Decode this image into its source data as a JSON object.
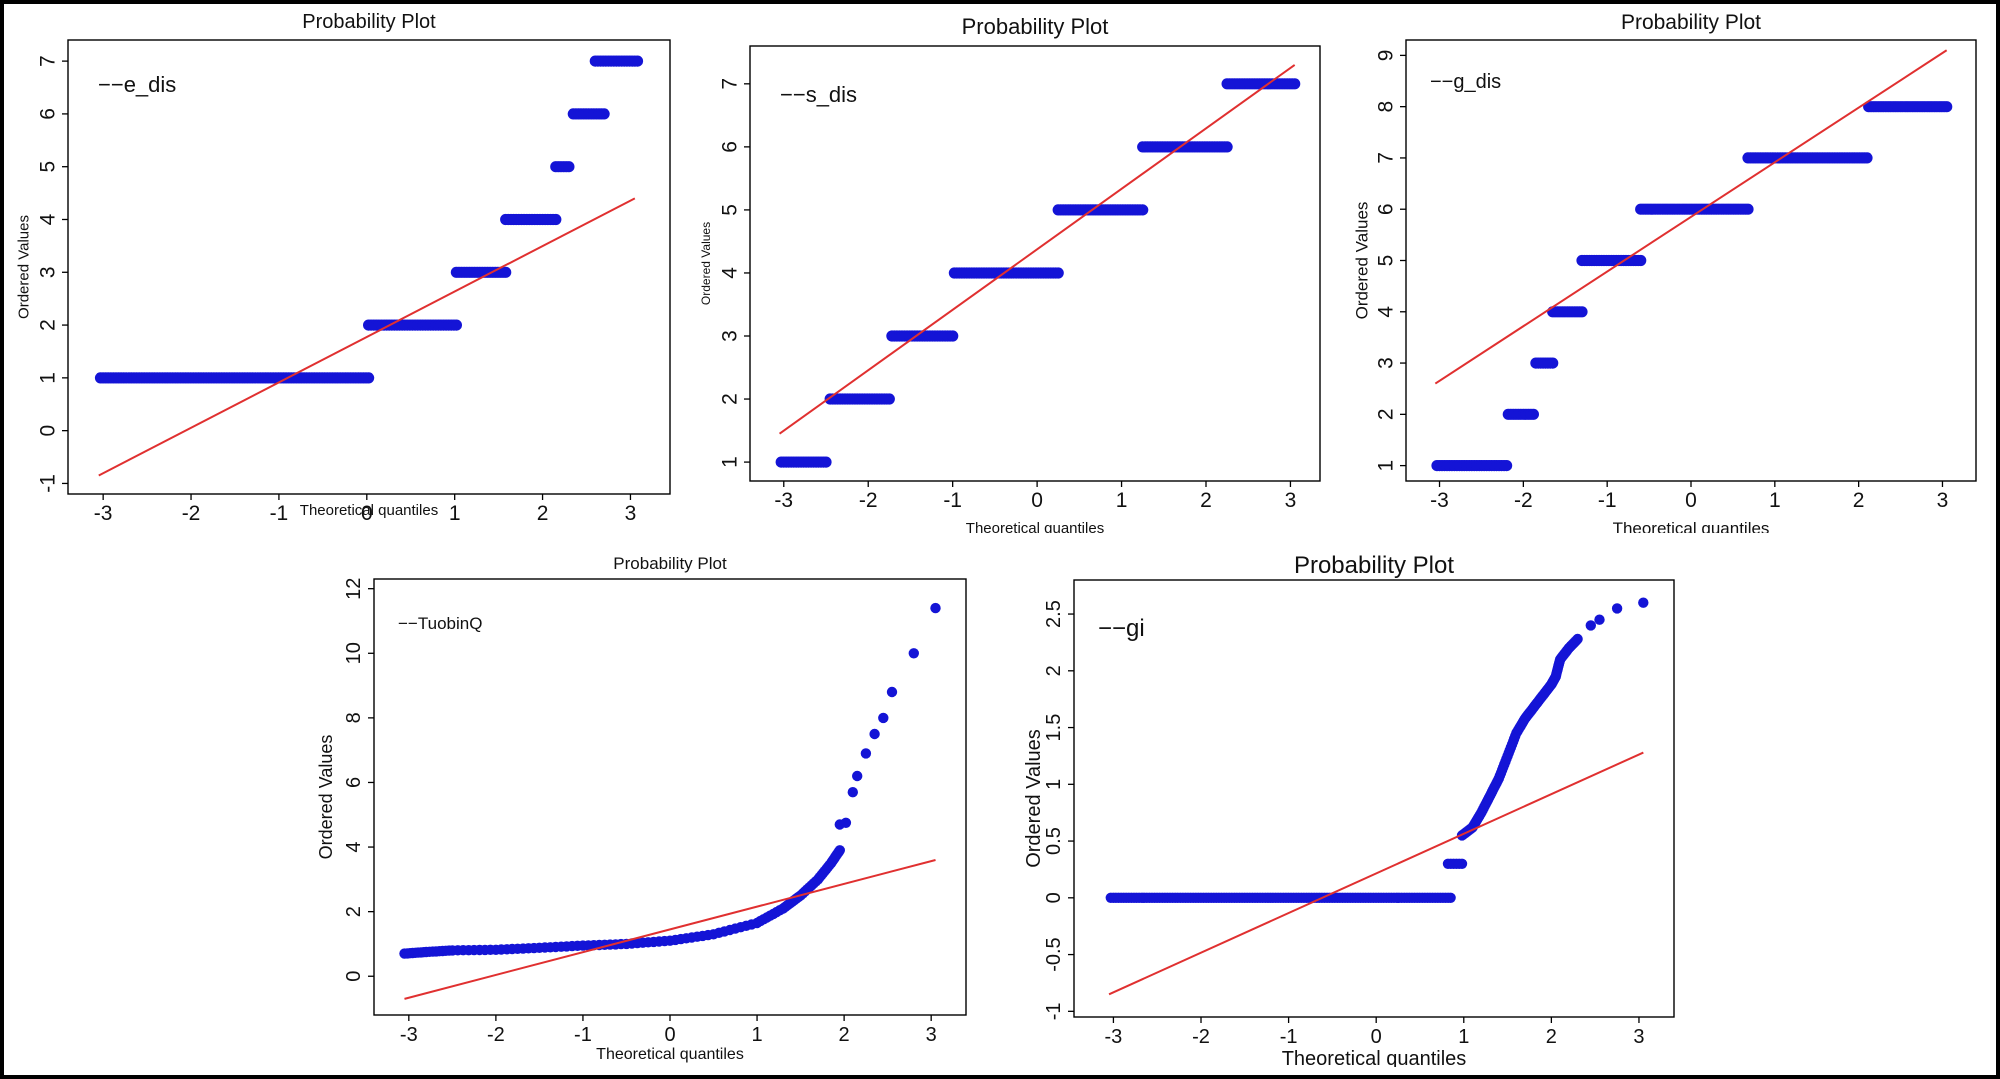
{
  "colors": {
    "points": "#1414d6",
    "fit": "#e03030",
    "frame": "#000000",
    "background": "#ffffff"
  },
  "chart_data": [
    {
      "id": "e_dis",
      "type": "scatter",
      "title": "Probability Plot",
      "legend": "−−e_dis",
      "xlabel": "Theoretical quantiles",
      "ylabel": "Ordered Values",
      "xlim": [
        -3.4,
        3.45
      ],
      "ylim": [
        -1.2,
        7.4
      ],
      "xticks": [
        -3,
        -2,
        -1,
        0,
        1,
        2,
        3
      ],
      "yticks": [
        -1,
        0,
        1,
        2,
        3,
        4,
        5,
        6,
        7
      ],
      "ytick_labels": [
        "-1",
        "0",
        "1",
        "2",
        "3",
        "4",
        "5",
        "6",
        "7"
      ],
      "fit_line": {
        "x": [
          -3.05,
          3.05
        ],
        "y": [
          -0.85,
          4.4
        ]
      },
      "segments": [
        {
          "y": 1,
          "x_start": -3.03,
          "x_end": 0.02
        },
        {
          "y": 2,
          "x_start": 0.02,
          "x_end": 1.02
        },
        {
          "y": 3,
          "x_start": 1.02,
          "x_end": 1.58
        },
        {
          "y": 4,
          "x_start": 1.58,
          "x_end": 2.15
        },
        {
          "y": 5,
          "x_start": 2.15,
          "x_end": 2.3
        },
        {
          "y": 6,
          "x_start": 2.35,
          "x_end": 2.7
        },
        {
          "y": 7,
          "x_start": 2.6,
          "x_end": 3.08
        }
      ]
    },
    {
      "id": "s_dis",
      "type": "scatter",
      "title": "Probability Plot",
      "legend": "−−s_dis",
      "xlabel": "Theoretical quantiles",
      "ylabel": "Ordered Values",
      "xlim": [
        -3.4,
        3.35
      ],
      "ylim": [
        0.7,
        7.6
      ],
      "xticks": [
        -3,
        -2,
        -1,
        0,
        1,
        2,
        3
      ],
      "yticks": [
        1,
        2,
        3,
        4,
        5,
        6,
        7
      ],
      "ytick_labels": [
        "1",
        "2",
        "3",
        "4",
        "5",
        "6",
        "7"
      ],
      "fit_line": {
        "x": [
          -3.05,
          3.05
        ],
        "y": [
          1.45,
          7.3
        ]
      },
      "segments": [
        {
          "y": 1,
          "x_start": -3.03,
          "x_end": -2.5
        },
        {
          "y": 2,
          "x_start": -2.45,
          "x_end": -1.75
        },
        {
          "y": 3,
          "x_start": -1.72,
          "x_end": -1.0
        },
        {
          "y": 4,
          "x_start": -0.98,
          "x_end": 0.25
        },
        {
          "y": 5,
          "x_start": 0.25,
          "x_end": 1.25
        },
        {
          "y": 6,
          "x_start": 1.25,
          "x_end": 2.25
        },
        {
          "y": 7,
          "x_start": 2.25,
          "x_end": 3.05
        }
      ]
    },
    {
      "id": "g_dis",
      "type": "scatter",
      "title": "Probability Plot",
      "legend": "−−g_dis",
      "xlabel": "Theoretical quantiles",
      "ylabel": "Ordered Values",
      "xlim": [
        -3.4,
        3.4
      ],
      "ylim": [
        0.7,
        9.3
      ],
      "xticks": [
        -3,
        -2,
        -1,
        0,
        1,
        2,
        3
      ],
      "yticks": [
        1,
        2,
        3,
        4,
        5,
        6,
        7,
        8,
        9
      ],
      "ytick_labels": [
        "1",
        "2",
        "3",
        "4",
        "5",
        "6",
        "7",
        "8",
        "9"
      ],
      "fit_line": {
        "x": [
          -3.05,
          3.05
        ],
        "y": [
          2.6,
          9.1
        ]
      },
      "segments": [
        {
          "y": 1,
          "x_start": -3.03,
          "x_end": -2.2
        },
        {
          "y": 2,
          "x_start": -2.18,
          "x_end": -1.88
        },
        {
          "y": 3,
          "x_start": -1.85,
          "x_end": -1.65
        },
        {
          "y": 4,
          "x_start": -1.65,
          "x_end": -1.3
        },
        {
          "y": 5,
          "x_start": -1.3,
          "x_end": -0.6
        },
        {
          "y": 6,
          "x_start": -0.6,
          "x_end": 0.68
        },
        {
          "y": 7,
          "x_start": 0.68,
          "x_end": 2.1
        },
        {
          "y": 8,
          "x_start": 2.12,
          "x_end": 3.05
        }
      ]
    },
    {
      "id": "TuobinQ",
      "type": "scatter",
      "title": "Probability Plot",
      "legend": "−−TuobinQ",
      "xlabel": "Theoretical quantiles",
      "ylabel": "Ordered Values",
      "xlim": [
        -3.4,
        3.4
      ],
      "ylim": [
        -1.2,
        12.3
      ],
      "xticks": [
        -3,
        -2,
        -1,
        0,
        1,
        2,
        3
      ],
      "yticks": [
        0,
        2,
        4,
        6,
        8,
        10,
        12
      ],
      "ytick_labels": [
        "0",
        "2",
        "4",
        "6",
        "8",
        "10",
        "12"
      ],
      "fit_line": {
        "x": [
          -3.05,
          3.05
        ],
        "y": [
          -0.7,
          3.6
        ]
      },
      "curve": [
        [
          -3.05,
          0.7
        ],
        [
          -2.8,
          0.75
        ],
        [
          -2.5,
          0.8
        ],
        [
          -2.0,
          0.82
        ],
        [
          -1.5,
          0.88
        ],
        [
          -1.0,
          0.95
        ],
        [
          -0.5,
          1.0
        ],
        [
          0.0,
          1.1
        ],
        [
          0.5,
          1.3
        ],
        [
          1.0,
          1.65
        ],
        [
          1.3,
          2.1
        ],
        [
          1.5,
          2.5
        ],
        [
          1.7,
          3.0
        ],
        [
          1.85,
          3.5
        ],
        [
          1.95,
          3.9
        ]
      ],
      "outliers": [
        [
          1.95,
          4.7
        ],
        [
          2.02,
          4.75
        ],
        [
          2.1,
          5.7
        ],
        [
          2.15,
          6.2
        ],
        [
          2.25,
          6.9
        ],
        [
          2.35,
          7.5
        ],
        [
          2.45,
          8.0
        ],
        [
          2.55,
          8.8
        ],
        [
          2.8,
          10.0
        ],
        [
          3.05,
          11.4
        ]
      ]
    },
    {
      "id": "gi",
      "type": "scatter",
      "title": "Probability Plot",
      "legend": "−−gi",
      "xlabel": "Theoretical quantiles",
      "ylabel": "Ordered Values",
      "xlim": [
        -3.45,
        3.4
      ],
      "ylim": [
        -1.05,
        2.8
      ],
      "xticks": [
        -3,
        -2,
        -1,
        0,
        1,
        2,
        3
      ],
      "yticks": [
        -1,
        -0.5,
        0,
        0.5,
        1,
        1.5,
        2,
        2.5
      ],
      "ytick_labels": [
        "-1",
        "-0.5",
        "0",
        "0.5",
        "1",
        "1.5",
        "2",
        "2.5"
      ],
      "fit_line": {
        "x": [
          -3.05,
          3.05
        ],
        "y": [
          -0.85,
          1.28
        ]
      },
      "segments": [
        {
          "y": 0,
          "x_start": -3.03,
          "x_end": 0.85
        },
        {
          "y": 0.3,
          "x_start": 0.82,
          "x_end": 0.98
        }
      ],
      "curve": [
        [
          0.98,
          0.55
        ],
        [
          1.1,
          0.62
        ],
        [
          1.2,
          0.75
        ],
        [
          1.3,
          0.9
        ],
        [
          1.4,
          1.05
        ],
        [
          1.5,
          1.25
        ],
        [
          1.6,
          1.45
        ],
        [
          1.7,
          1.58
        ],
        [
          1.8,
          1.68
        ],
        [
          1.9,
          1.78
        ],
        [
          2.0,
          1.88
        ],
        [
          2.05,
          1.95
        ],
        [
          2.1,
          2.1
        ],
        [
          2.2,
          2.2
        ],
        [
          2.3,
          2.28
        ]
      ],
      "outliers": [
        [
          2.45,
          2.4
        ],
        [
          2.55,
          2.45
        ],
        [
          2.75,
          2.55
        ],
        [
          3.05,
          2.6
        ]
      ]
    }
  ]
}
